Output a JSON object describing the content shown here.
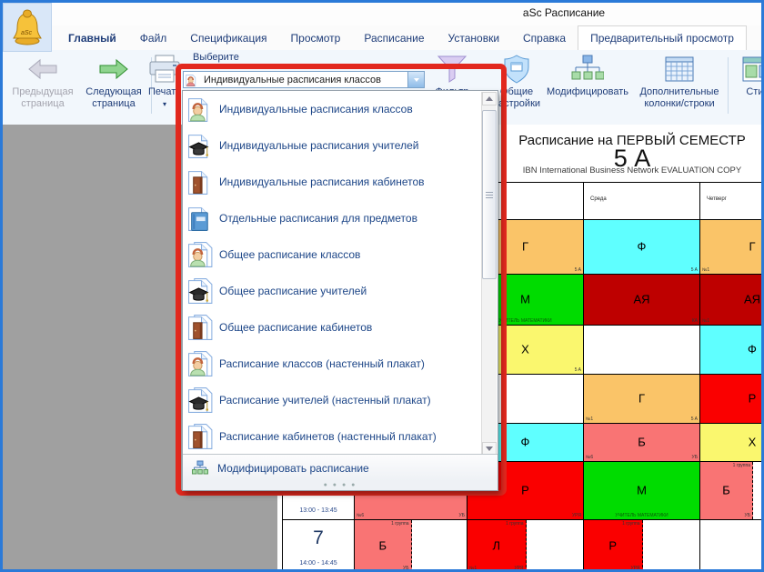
{
  "window_title": "aSc Расписание",
  "tabs": [
    {
      "label": "Главный",
      "bold": true
    },
    {
      "label": "Файл"
    },
    {
      "label": "Спецификация"
    },
    {
      "label": "Просмотр"
    },
    {
      "label": "Расписание"
    },
    {
      "label": "Установки"
    },
    {
      "label": "Справка"
    },
    {
      "label": "Предварительный просмотр",
      "active": true
    }
  ],
  "toolbar": {
    "prev_page": "Предыдущая страница",
    "next_page": "Следующая страница",
    "print": "Печать",
    "filter": "Фильтр",
    "settings": "Общие настройки",
    "modify": "Модифицировать",
    "extra": "Дополнительные колонки/строки",
    "style": "Стиль"
  },
  "icons": {
    "prev_page": "left-arrow",
    "next_page": "right-arrow",
    "print": "printer",
    "filter": "funnel",
    "settings": "shield",
    "modify": "org-chart",
    "extra": "grid-table",
    "style": "window-layout",
    "logo": "bell"
  },
  "picker": {
    "label": "Выберите",
    "value": "Индивидуальные расписания классов",
    "highlight_color": "#e2281e",
    "items": [
      {
        "label": "Индивидуальные расписания классов",
        "icon": "class",
        "multi": false
      },
      {
        "label": "Индивидуальные расписания учителей",
        "icon": "teacher",
        "multi": false
      },
      {
        "label": "Индивидуальные расписания кабинетов",
        "icon": "room",
        "multi": false
      },
      {
        "label": "Отдельные расписания для предметов",
        "icon": "book",
        "multi": false
      },
      {
        "label": "Общее расписание классов",
        "icon": "class",
        "multi": true
      },
      {
        "label": "Общее расписание учителей",
        "icon": "teacher",
        "multi": true
      },
      {
        "label": "Общее расписание кабинетов",
        "icon": "room",
        "multi": true
      },
      {
        "label": "Расписание классов (настенный плакат)",
        "icon": "class",
        "multi": true
      },
      {
        "label": "Расписание учителей (настенный плакат)",
        "icon": "teacher",
        "multi": true
      },
      {
        "label": "Расписание кабинетов (настенный плакат)",
        "icon": "room",
        "multi": true
      }
    ],
    "action": "Модифицировать расписание"
  },
  "timetable": {
    "title": "Расписание на ПЕРВЫЙ СЕМЕСТР",
    "class_name": "5 А",
    "watermark": "IBN International Business Network EVALUATION COPY",
    "day_headers": [
      {
        "col": 3,
        "label": "Среда"
      },
      {
        "col": 4,
        "label": "Четверг"
      }
    ],
    "palette": {
      "orange": "#fac468",
      "cyan": "#5fffff",
      "green": "#00dc00",
      "darkred": "#be0000",
      "red": "#fa0000",
      "salmon": "#f97474",
      "yellow": "#faf76e",
      "white": "#ffffff"
    },
    "rows": [
      {
        "period": "",
        "time": "",
        "cells": [
          {
            "col": 2,
            "subject": "Г",
            "color": "orange",
            "br": "5 A"
          },
          {
            "col": 3,
            "subject": "Ф",
            "color": "cyan",
            "br": "5 A"
          },
          {
            "col": 4,
            "subject": "Г",
            "color": "orange",
            "bl": "№1"
          }
        ]
      },
      {
        "period": "",
        "time": "",
        "cells": [
          {
            "col": 2,
            "subject": "М",
            "color": "green",
            "bc": "УЧИТЕЛЬ МАТЕМАТИКИ"
          },
          {
            "col": 3,
            "subject": "АЯ",
            "color": "darkred",
            "br": "КА"
          },
          {
            "col": 4,
            "subject": "АЯ",
            "color": "darkred",
            "bl": "№1"
          }
        ]
      },
      {
        "period": "",
        "time": "",
        "cells": [
          {
            "col": 2,
            "subject": "Х",
            "color": "yellow",
            "br": "5 A"
          },
          {
            "col": 4,
            "subject": "Ф",
            "color": "cyan"
          }
        ]
      },
      {
        "period": "",
        "time": "",
        "cells": [
          {
            "col": 3,
            "subject": "Г",
            "color": "orange",
            "bl": "№1",
            "br": "5 A"
          },
          {
            "col": 4,
            "subject": "Р",
            "color": "red"
          }
        ]
      },
      {
        "period": "",
        "time": "",
        "cells": [
          {
            "col": 2,
            "subject": "Ф",
            "color": "cyan"
          },
          {
            "col": 3,
            "subject": "Б",
            "color": "salmon",
            "bl": "№6",
            "br": "УБ"
          },
          {
            "col": 4,
            "subject": "Х",
            "color": "yellow"
          }
        ]
      },
      {
        "period": "6",
        "time": "13:00 - 13:45",
        "cells": [
          {
            "col": 1,
            "subject": "Б",
            "color": "salmon",
            "bl": "№6",
            "br": "УБ"
          },
          {
            "col": 2,
            "subject": "Р",
            "color": "red",
            "br": "УРЯ"
          },
          {
            "col": 3,
            "subject": "М",
            "color": "green",
            "bc": "УЧИТЕЛЬ МАТЕМАТИКИ"
          },
          {
            "col": 4,
            "subject": "Б",
            "color": "salmon",
            "half": true,
            "tr": "1 группа",
            "br": "УБ"
          }
        ]
      },
      {
        "period": "7",
        "time": "14:00 - 14:45",
        "cells": [
          {
            "col": 1,
            "subject": "Б",
            "color": "salmon",
            "half": true,
            "tr": "1 группа",
            "br": "УБ"
          },
          {
            "col": 2,
            "subject": "Л",
            "color": "red",
            "half": true,
            "tr": "1 группа",
            "bl": "№1",
            "br": "УРЯ"
          },
          {
            "col": 3,
            "subject": "Р",
            "color": "red",
            "half": true,
            "tr": "1 группа",
            "br": "УРЯ"
          }
        ]
      }
    ]
  }
}
